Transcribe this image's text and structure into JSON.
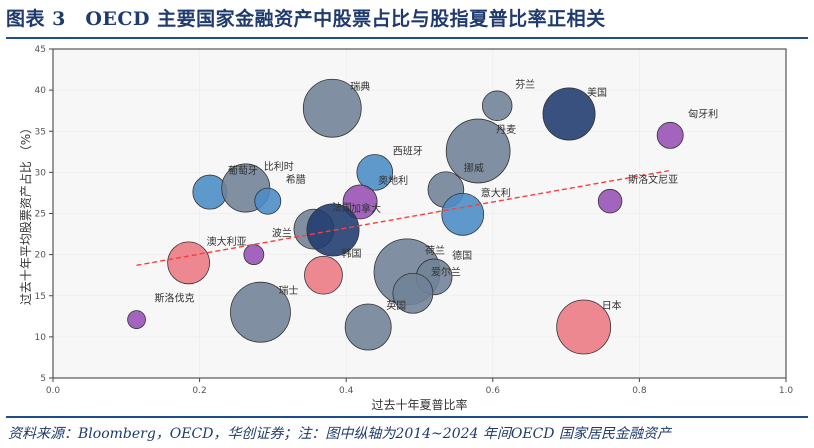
{
  "title": "图表 3　OECD 主要国家金融资产中股票占比与股指夏普比率正相关",
  "footer": "资料来源：Bloomberg，OECD，华创证券；注：图中纵轴为2014~2024 年间OECD 国家居民金融资产",
  "chart_data": {
    "type": "scatter",
    "subtype": "bubble",
    "xlabel": "过去十年夏普比率",
    "ylabel": "过去十年平均股票资产占比 （%）",
    "xlim": [
      0.0,
      1.0
    ],
    "ylim": [
      5,
      45
    ],
    "xticks": [
      "0.0",
      "0.2",
      "0.4",
      "0.6",
      "0.8",
      "1.0"
    ],
    "yticks": [
      "5",
      "10",
      "15",
      "20",
      "25",
      "30",
      "35",
      "40",
      "45"
    ],
    "grid": true,
    "colors": {
      "gray": "#6f8296",
      "navy": "#1f3a6e",
      "blue": "#4a8cc6",
      "purple": "#9650b4",
      "pink": "#ec7882",
      "trend": "#ff3b3b",
      "background": "#f7f7f7"
    },
    "points": [
      {
        "name": "瑞典",
        "x": 0.381,
        "y": 37.8,
        "size": 84,
        "color": "gray"
      },
      {
        "name": "芬兰",
        "x": 0.606,
        "y": 38.1,
        "size": 22,
        "color": "gray"
      },
      {
        "name": "美国",
        "x": 0.704,
        "y": 37.1,
        "size": 68,
        "color": "navy"
      },
      {
        "name": "匈牙利",
        "x": 0.842,
        "y": 34.5,
        "size": 17,
        "color": "purple"
      },
      {
        "name": "丹麦",
        "x": 0.58,
        "y": 32.6,
        "size": 102,
        "color": "gray"
      },
      {
        "name": "西班牙",
        "x": 0.439,
        "y": 30.0,
        "size": 32,
        "color": "blue"
      },
      {
        "name": "葡萄牙",
        "x": 0.214,
        "y": 27.6,
        "size": 29,
        "color": "blue"
      },
      {
        "name": "比利时",
        "x": 0.263,
        "y": 28.1,
        "size": 58,
        "color": "gray"
      },
      {
        "name": "希腊",
        "x": 0.293,
        "y": 26.5,
        "size": 17,
        "color": "blue"
      },
      {
        "name": "挪威",
        "x": 0.536,
        "y": 27.9,
        "size": 32,
        "color": "gray"
      },
      {
        "name": "奥地利",
        "x": 0.419,
        "y": 26.4,
        "size": 29,
        "color": "purple"
      },
      {
        "name": "斯洛文尼亚",
        "x": 0.76,
        "y": 26.5,
        "size": 14,
        "color": "purple"
      },
      {
        "name": "意大利",
        "x": 0.559,
        "y": 24.9,
        "size": 44,
        "color": "blue"
      },
      {
        "name": "法国",
        "x": 0.356,
        "y": 23.1,
        "size": 40,
        "color": "gray"
      },
      {
        "name": "加拿大",
        "x": 0.382,
        "y": 23.0,
        "size": 68,
        "color": "navy"
      },
      {
        "name": "波兰",
        "x": 0.274,
        "y": 20.0,
        "size": 10,
        "color": "purple"
      },
      {
        "name": "澳大利亚",
        "x": 0.185,
        "y": 19.0,
        "size": 44,
        "color": "pink"
      },
      {
        "name": "韩国",
        "x": 0.369,
        "y": 17.5,
        "size": 36,
        "color": "pink"
      },
      {
        "name": "荷兰",
        "x": 0.483,
        "y": 17.9,
        "size": 109,
        "color": "gray"
      },
      {
        "name": "德国",
        "x": 0.52,
        "y": 17.3,
        "size": 32,
        "color": "gray"
      },
      {
        "name": "爱尔兰",
        "x": 0.491,
        "y": 15.3,
        "size": 40,
        "color": "gray"
      },
      {
        "name": "斯洛伐克",
        "x": 0.114,
        "y": 12.1,
        "size": 8,
        "color": "purple"
      },
      {
        "name": "瑞士",
        "x": 0.283,
        "y": 13.0,
        "size": 90,
        "color": "gray"
      },
      {
        "name": "英国",
        "x": 0.43,
        "y": 11.2,
        "size": 53,
        "color": "gray"
      },
      {
        "name": "日本",
        "x": 0.724,
        "y": 11.2,
        "size": 73,
        "color": "pink"
      }
    ],
    "trendline": {
      "x": [
        0.114,
        0.84
      ],
      "y": [
        18.7,
        30.2
      ],
      "style": "dashed"
    }
  }
}
